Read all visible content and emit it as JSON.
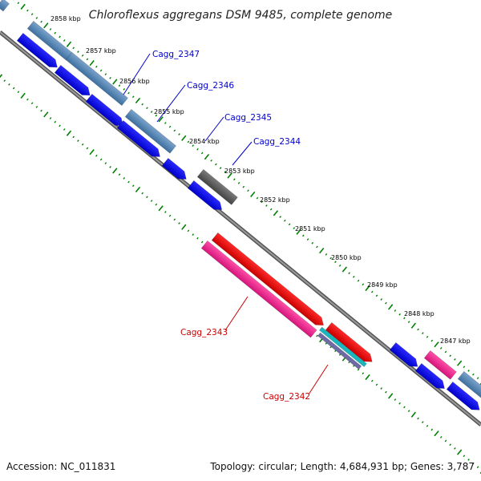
{
  "title": "Chloroflexus aggregans DSM 9485, complete genome",
  "accession": "Accession: NC_011831",
  "summary": "Topology: circular; Length: 4,684,931 bp; Genes: 3,787",
  "scale_labels": [
    "2858 kbp",
    "2857 kbp",
    "2856 kbp",
    "2855 kbp",
    "2854 kbp",
    "2853 kbp",
    "2852 kbp",
    "2851 kbp",
    "2850 kbp",
    "2849 kbp",
    "2848 kbp",
    "2847 kbp"
  ],
  "gene_labels": [
    {
      "name": "Cagg_2347",
      "color": "#0000cc"
    },
    {
      "name": "Cagg_2346",
      "color": "#0000cc"
    },
    {
      "name": "Cagg_2345",
      "color": "#0000cc"
    },
    {
      "name": "Cagg_2344",
      "color": "#0000cc"
    },
    {
      "name": "Cagg_2343",
      "color": "#cc0000"
    },
    {
      "name": "Cagg_2342",
      "color": "#cc0000"
    }
  ],
  "colors": {
    "cds_forward": "#0000ee",
    "gene_steel": "#4f7fae",
    "gene_gray": "#5e5e5e",
    "cds_red": "#ee0000",
    "gene_pink": "#f0218e",
    "teal": "#18b7be",
    "purple": "#6e6aa6",
    "backbone": "#777777",
    "tick_green": "#008000"
  }
}
